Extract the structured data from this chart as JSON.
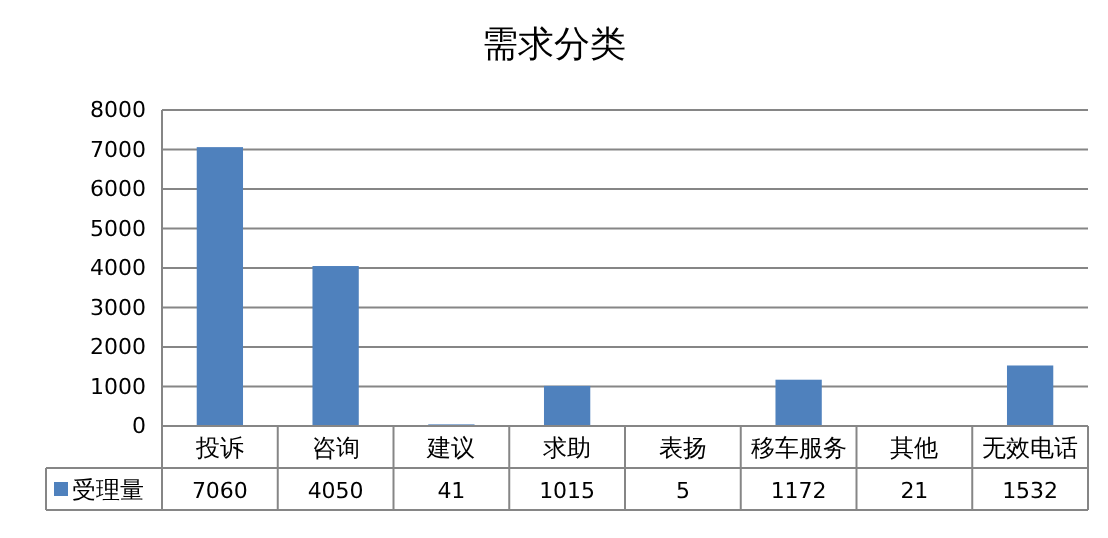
{
  "chart_data": {
    "type": "bar",
    "title": "需求分类",
    "categories": [
      "投诉",
      "咨询",
      "建议",
      "求助",
      "表扬",
      "移车服务",
      "其他",
      "无效电话"
    ],
    "series": [
      {
        "name": "受理量",
        "color": "#4f81bd",
        "values": [
          7060,
          4050,
          41,
          1015,
          5,
          1172,
          21,
          1532
        ]
      }
    ],
    "ylim": [
      0,
      8000
    ],
    "yticks": [
      0,
      1000,
      2000,
      3000,
      4000,
      5000,
      6000,
      7000,
      8000
    ],
    "grid": "y",
    "data_labels": true
  }
}
